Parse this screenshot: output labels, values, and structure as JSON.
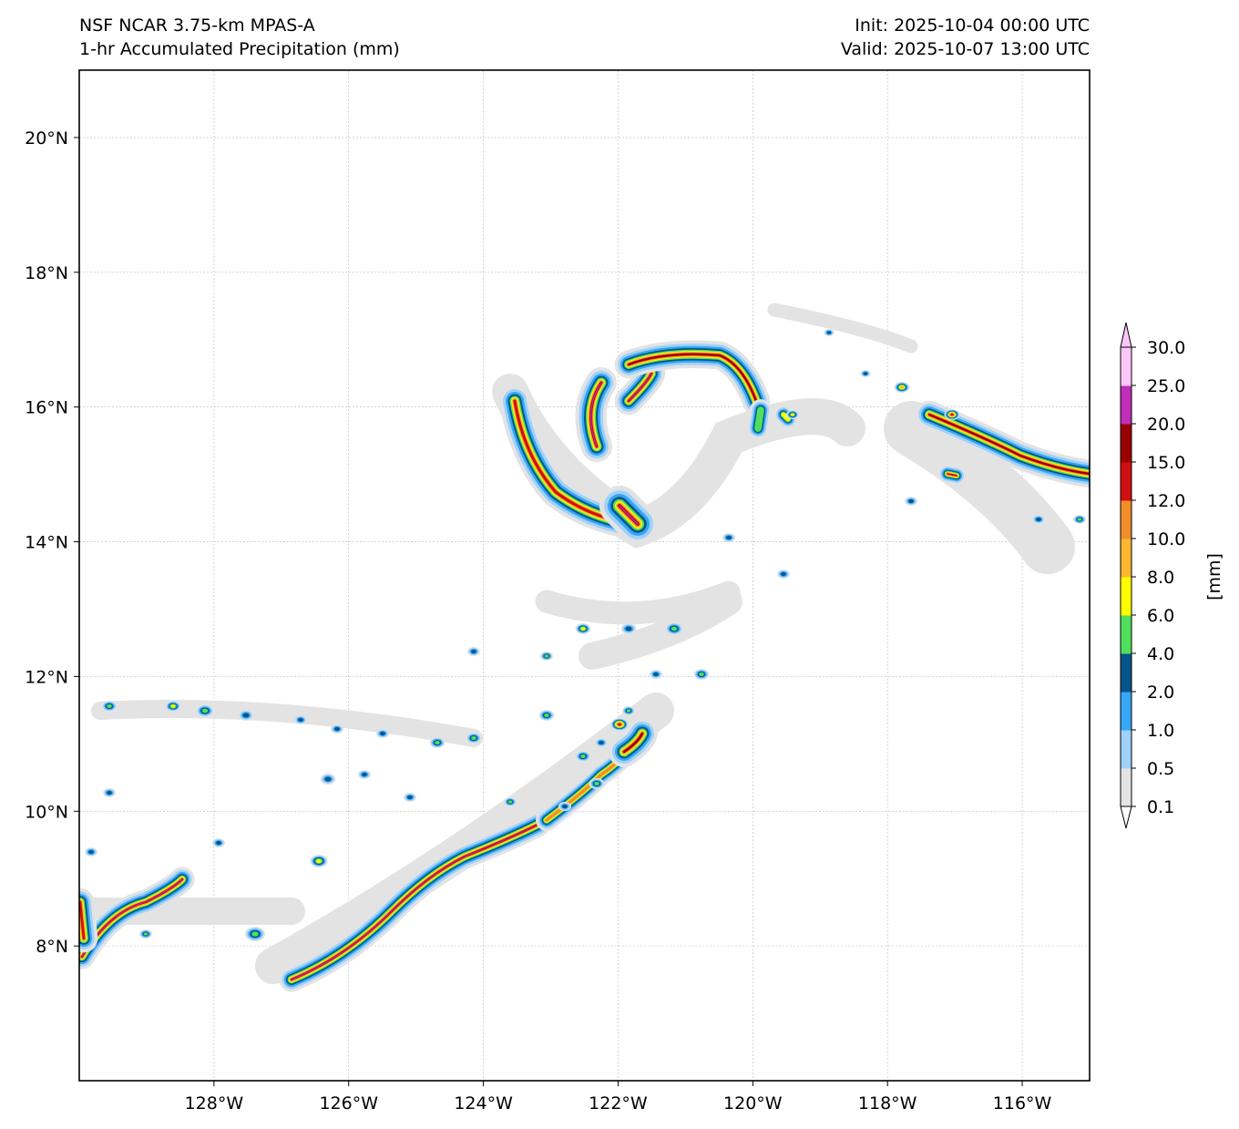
{
  "header": {
    "title_line1": "NSF NCAR 3.75-km MPAS-A",
    "title_line2": "1-hr Accumulated Precipitation (mm)",
    "init": "Init: 2025-10-04 00:00 UTC",
    "valid": "Valid: 2025-10-07 13:00 UTC"
  },
  "map": {
    "lon_range": [
      -130,
      -115
    ],
    "lat_range": [
      6,
      21
    ],
    "lon_ticks": [
      {
        "value": -128,
        "label": "128°W"
      },
      {
        "value": -126,
        "label": "126°W"
      },
      {
        "value": -124,
        "label": "124°W"
      },
      {
        "value": -122,
        "label": "122°W"
      },
      {
        "value": -120,
        "label": "120°W"
      },
      {
        "value": -118,
        "label": "118°W"
      },
      {
        "value": -116,
        "label": "116°W"
      }
    ],
    "lat_ticks": [
      {
        "value": 8,
        "label": "8°N"
      },
      {
        "value": 10,
        "label": "10°N"
      },
      {
        "value": 12,
        "label": "12°N"
      },
      {
        "value": 14,
        "label": "14°N"
      },
      {
        "value": 16,
        "label": "16°N"
      },
      {
        "value": 18,
        "label": "18°N"
      },
      {
        "value": 20,
        "label": "20°N"
      }
    ]
  },
  "colorbar": {
    "unit_label": "[mm]",
    "levels": [
      "0.1",
      "0.5",
      "1.0",
      "2.0",
      "4.0",
      "6.0",
      "8.0",
      "10.0",
      "12.0",
      "15.0",
      "20.0",
      "25.0",
      "30.0"
    ],
    "colors": [
      "#e3e3e3",
      "#9fd1fb",
      "#36a6f6",
      "#05548a",
      "#4fdf5c",
      "#fffe00",
      "#fcb631",
      "#f28e2a",
      "#d10f0e",
      "#9b0000",
      "#c02eb8",
      "#fdc6f9"
    ]
  }
}
